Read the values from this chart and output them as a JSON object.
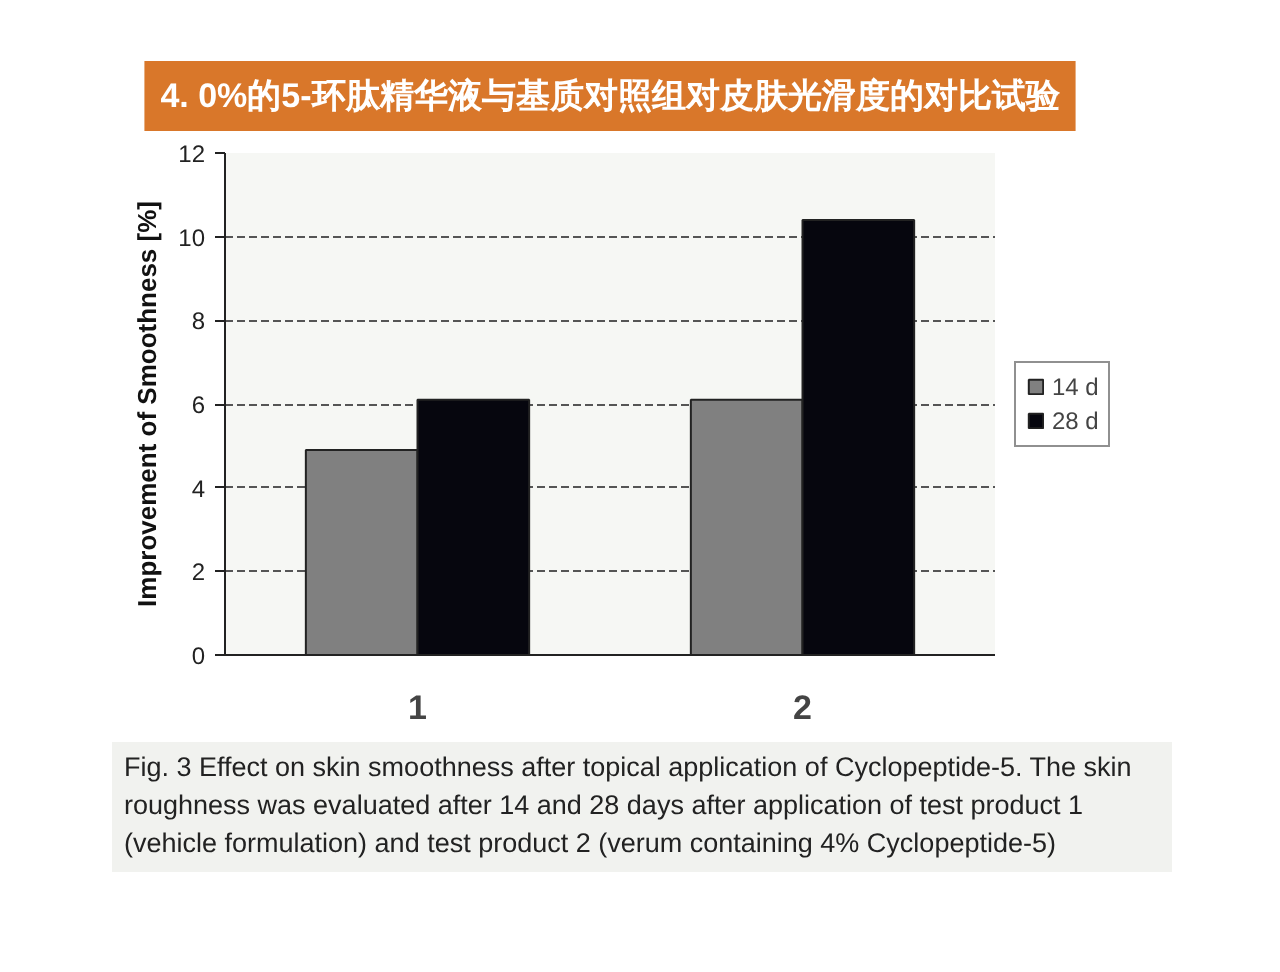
{
  "chart_data": {
    "type": "bar",
    "title": "4. 0%的5-环肽精华液与基质对照组对皮肤光滑度的对比试验",
    "ylabel": "Improvement of Smoothness [%]",
    "categories": [
      "1",
      "2"
    ],
    "series": [
      {
        "name": "14 d",
        "color": "#808080",
        "values": [
          4.9,
          6.1
        ]
      },
      {
        "name": "28 d",
        "color": "#06060e",
        "values": [
          6.1,
          10.4
        ]
      }
    ],
    "ylim": [
      0,
      12
    ],
    "yticks": [
      0,
      2,
      4,
      6,
      8,
      10,
      12
    ],
    "grid": "y",
    "legend": "right",
    "annotations": [
      "Fig. 3 Effect on skin smoothness after topical application of Cyclopeptide-5. The skin roughness was evaluated after 14 and 28 days after application of test product 1 (vehicle formulation) and test product 2 (verum containing 4% Cyclopeptide-5)"
    ]
  }
}
